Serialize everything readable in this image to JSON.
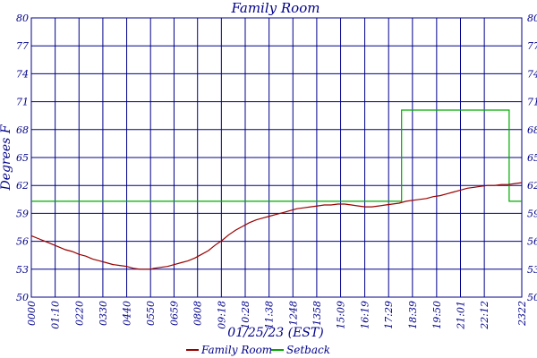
{
  "chart_data": {
    "type": "line",
    "title": "Family Room",
    "xlabel": "01/25/23 (EST)",
    "ylabel": "Degrees F",
    "ylim": [
      50,
      80
    ],
    "yticks": [
      50,
      53,
      56,
      59,
      62,
      65,
      68,
      71,
      74,
      77,
      80
    ],
    "ytick_labels": [
      "50",
      "53",
      "56",
      "59",
      "62",
      "65",
      "68",
      "71",
      "74",
      "77",
      "80"
    ],
    "xlim_minutes": [
      0,
      1440
    ],
    "xticks_minutes": [
      0,
      70,
      140,
      210,
      280,
      350,
      419,
      488,
      558,
      628,
      698,
      768,
      838,
      908,
      979,
      1049,
      1119,
      1190,
      1260,
      1330,
      1440
    ],
    "xtick_labels": [
      "0000",
      "01:10",
      "0220",
      "0330",
      "0440",
      "0550",
      "0659",
      "0808",
      "09:18",
      "10:28",
      "11:38",
      "1248",
      "1358",
      "15:09",
      "16:19",
      "17:29",
      "18:39",
      "19:50",
      "21:01",
      "22:12",
      "2322"
    ],
    "grid": true,
    "legend_position": "bottom",
    "series": [
      {
        "name": "Family Room",
        "color": "#990000",
        "x": [
          0,
          20,
          40,
          60,
          80,
          100,
          120,
          140,
          160,
          180,
          200,
          220,
          240,
          260,
          280,
          300,
          320,
          340,
          350,
          360,
          380,
          400,
          420,
          440,
          460,
          480,
          500,
          520,
          540,
          560,
          580,
          600,
          620,
          640,
          660,
          680,
          700,
          720,
          740,
          760,
          780,
          800,
          820,
          840,
          860,
          880,
          900,
          920,
          940,
          960,
          980,
          1000,
          1020,
          1040,
          1060,
          1080,
          1100,
          1120,
          1140,
          1160,
          1180,
          1200,
          1220,
          1240,
          1260,
          1280,
          1300,
          1320,
          1340,
          1360,
          1380,
          1400,
          1420,
          1440
        ],
        "values": [
          56.6,
          56.3,
          56.0,
          55.7,
          55.4,
          55.1,
          54.9,
          54.6,
          54.4,
          54.1,
          53.9,
          53.7,
          53.5,
          53.4,
          53.3,
          53.1,
          53.0,
          53.0,
          53.0,
          53.1,
          53.2,
          53.3,
          53.5,
          53.7,
          53.9,
          54.2,
          54.6,
          55.0,
          55.6,
          56.1,
          56.7,
          57.2,
          57.6,
          58.0,
          58.3,
          58.5,
          58.7,
          58.9,
          59.1,
          59.3,
          59.5,
          59.6,
          59.7,
          59.8,
          59.9,
          59.9,
          60.0,
          60.0,
          59.9,
          59.8,
          59.7,
          59.7,
          59.8,
          59.9,
          60.0,
          60.1,
          60.3,
          60.4,
          60.5,
          60.6,
          60.8,
          60.9,
          61.1,
          61.3,
          61.5,
          61.7,
          61.8,
          61.9,
          62.0,
          62.0,
          62.1,
          62.1,
          62.2,
          62.3
        ]
      },
      {
        "name": "Setback",
        "color": "#00aa00",
        "x": [
          0,
          1087,
          1087,
          1403,
          1403,
          1440
        ],
        "values": [
          60.3,
          60.3,
          70.1,
          70.1,
          60.3,
          60.3
        ]
      }
    ]
  }
}
